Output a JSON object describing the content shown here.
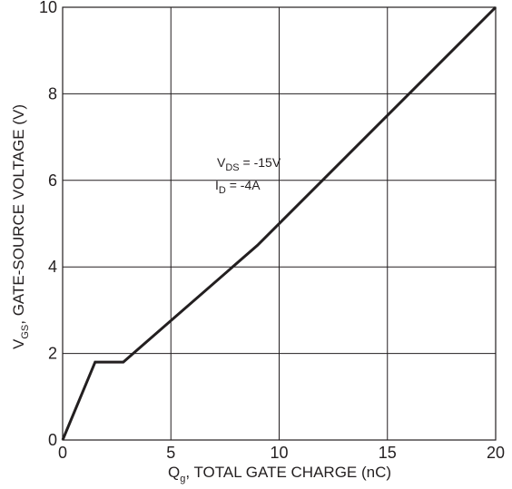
{
  "chart_data": {
    "type": "line",
    "xlabel": {
      "main": "Q",
      "sub": "g",
      "rest": ", TOTAL GATE CHARGE (nC)"
    },
    "ylabel": {
      "main": "V",
      "sub": "GS",
      "rest": ", GATE-SOURCE VOLTAGE (V)"
    },
    "xlim": [
      0,
      20
    ],
    "ylim": [
      0,
      10
    ],
    "xticks": [
      0,
      5,
      10,
      15,
      20
    ],
    "yticks": [
      0,
      2,
      4,
      6,
      8,
      10
    ],
    "grid": true,
    "series": [
      {
        "x": [
          0,
          1.5,
          2.8,
          9.0,
          20.0
        ],
        "y": [
          0,
          1.8,
          1.8,
          4.5,
          10.0
        ]
      }
    ],
    "annotations": {
      "line1": {
        "main": "V",
        "sub": "DS",
        "rest": " = -15V"
      },
      "line2": {
        "main": "I",
        "sub": "D",
        "rest": " = -4A"
      }
    }
  },
  "colors": {
    "line": "#231f20",
    "grid": "#231f20",
    "text": "#231f20"
  }
}
